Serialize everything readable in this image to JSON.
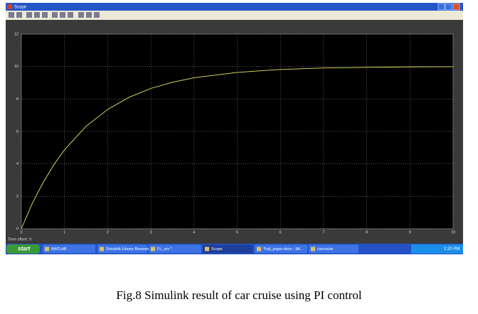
{
  "window": {
    "title": "Scope"
  },
  "chart_data": {
    "type": "line",
    "x": [
      0,
      0.25,
      0.5,
      0.75,
      1,
      1.5,
      2,
      2.5,
      3,
      3.5,
      4,
      5,
      6,
      7,
      8,
      9,
      10
    ],
    "series": [
      {
        "color": "#e8e860",
        "values": [
          0,
          1.54,
          2.83,
          3.93,
          4.87,
          6.32,
          7.36,
          8.11,
          8.65,
          9.03,
          9.31,
          9.64,
          9.82,
          9.91,
          9.95,
          9.98,
          9.99
        ]
      }
    ],
    "xlim": [
      0,
      10
    ],
    "xticks": [
      0,
      1,
      2,
      3,
      4,
      5,
      6,
      7,
      8,
      9,
      10
    ],
    "ylim": [
      0,
      12
    ],
    "yticks": [
      0,
      2,
      4,
      6,
      8,
      10,
      12
    ],
    "grid": true
  },
  "status": "Time offset:  0",
  "taskbar": {
    "start": "start",
    "items": [
      "MATLAB",
      "Simulink Library Browser",
      "FL_rev *",
      "Scope",
      "Trial_paper.docx - Mi...",
      "carcruise"
    ],
    "clock": "1:20 PM"
  },
  "caption": "Fig.8 Simulink result of car cruise using PI control"
}
